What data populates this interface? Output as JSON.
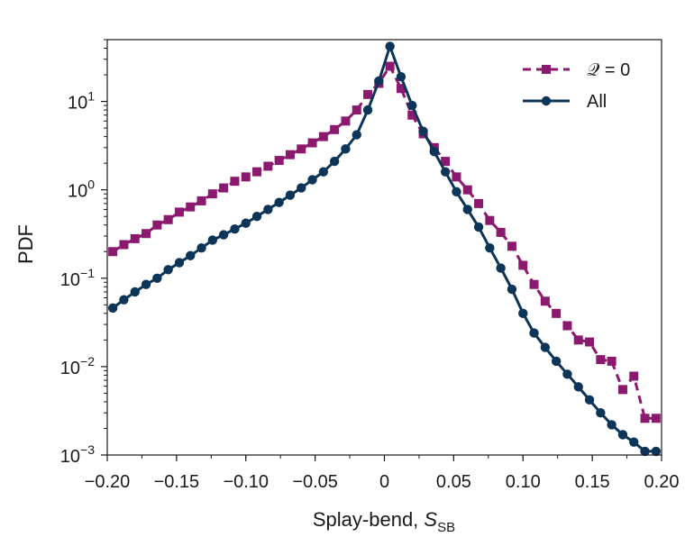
{
  "chart_data": {
    "type": "line",
    "xlabel": "Splay-bend, ",
    "xlabel_symbol": "S",
    "xlabel_subscript": "SB",
    "ylabel": "PDF",
    "xlim": [
      -0.2,
      0.2
    ],
    "ylim": [
      0.001,
      50
    ],
    "yscale": "log",
    "grid": false,
    "legend_position": "top-right",
    "x_ticks": [
      {
        "value": -0.2,
        "label": "−0.20"
      },
      {
        "value": -0.15,
        "label": "−0.15"
      },
      {
        "value": -0.1,
        "label": "−0.10"
      },
      {
        "value": -0.05,
        "label": "−0.05"
      },
      {
        "value": 0,
        "label": "0"
      },
      {
        "value": 0.05,
        "label": "0.05"
      },
      {
        "value": 0.1,
        "label": "0.10"
      },
      {
        "value": 0.15,
        "label": "0.15"
      },
      {
        "value": 0.2,
        "label": "0.20"
      }
    ],
    "y_ticks": [
      {
        "value": 0.001,
        "base": "10",
        "exp": "−3"
      },
      {
        "value": 0.01,
        "base": "10",
        "exp": "−2"
      },
      {
        "value": 0.1,
        "base": "10",
        "exp": "−1"
      },
      {
        "value": 1,
        "base": "10",
        "exp": "0"
      },
      {
        "value": 10,
        "base": "10",
        "exp": "1"
      }
    ],
    "series": [
      {
        "name": "𝒬 = 0",
        "color": "#8b1a6e",
        "marker": "square",
        "line": "dashed",
        "x": [
          -0.196,
          -0.188,
          -0.18,
          -0.172,
          -0.164,
          -0.156,
          -0.148,
          -0.14,
          -0.132,
          -0.124,
          -0.116,
          -0.108,
          -0.1,
          -0.092,
          -0.084,
          -0.076,
          -0.068,
          -0.06,
          -0.052,
          -0.044,
          -0.036,
          -0.028,
          -0.02,
          -0.012,
          -0.004,
          0.004,
          0.012,
          0.02,
          0.028,
          0.036,
          0.044,
          0.052,
          0.06,
          0.068,
          0.076,
          0.084,
          0.092,
          0.1,
          0.108,
          0.116,
          0.124,
          0.132,
          0.14,
          0.148,
          0.156,
          0.164,
          0.172,
          0.18,
          0.188,
          0.196
        ],
        "y": [
          0.2,
          0.24,
          0.28,
          0.32,
          0.4,
          0.46,
          0.56,
          0.64,
          0.75,
          0.9,
          1.05,
          1.25,
          1.4,
          1.6,
          1.85,
          2.15,
          2.5,
          2.9,
          3.4,
          4.0,
          4.8,
          6.0,
          8.0,
          12.0,
          16.0,
          25.0,
          14.0,
          7.0,
          4.3,
          3.0,
          2.1,
          1.4,
          1.0,
          0.7,
          0.45,
          0.33,
          0.23,
          0.14,
          0.085,
          0.055,
          0.04,
          0.029,
          0.02,
          0.019,
          0.012,
          0.0115,
          0.0055,
          0.0078,
          0.0026,
          0.0026
        ]
      },
      {
        "name": "All",
        "color": "#0d3558",
        "marker": "circle",
        "line": "solid",
        "x": [
          -0.196,
          -0.188,
          -0.18,
          -0.172,
          -0.164,
          -0.156,
          -0.148,
          -0.14,
          -0.132,
          -0.124,
          -0.116,
          -0.108,
          -0.1,
          -0.092,
          -0.084,
          -0.076,
          -0.068,
          -0.06,
          -0.052,
          -0.044,
          -0.036,
          -0.028,
          -0.02,
          -0.012,
          -0.004,
          0.004,
          0.012,
          0.02,
          0.028,
          0.036,
          0.044,
          0.052,
          0.06,
          0.068,
          0.076,
          0.084,
          0.092,
          0.1,
          0.108,
          0.116,
          0.124,
          0.132,
          0.14,
          0.148,
          0.156,
          0.164,
          0.172,
          0.18,
          0.188,
          0.196
        ],
        "y": [
          0.046,
          0.057,
          0.07,
          0.085,
          0.1,
          0.125,
          0.15,
          0.18,
          0.22,
          0.27,
          0.31,
          0.36,
          0.42,
          0.5,
          0.6,
          0.72,
          0.87,
          1.05,
          1.3,
          1.6,
          2.1,
          2.9,
          4.2,
          8.0,
          17.0,
          42.0,
          19.0,
          9.0,
          4.6,
          2.7,
          1.6,
          0.95,
          0.6,
          0.38,
          0.22,
          0.13,
          0.075,
          0.04,
          0.024,
          0.0165,
          0.0115,
          0.0082,
          0.0059,
          0.0042,
          0.003,
          0.0022,
          0.0017,
          0.0014,
          0.0011,
          0.0011
        ]
      }
    ]
  }
}
